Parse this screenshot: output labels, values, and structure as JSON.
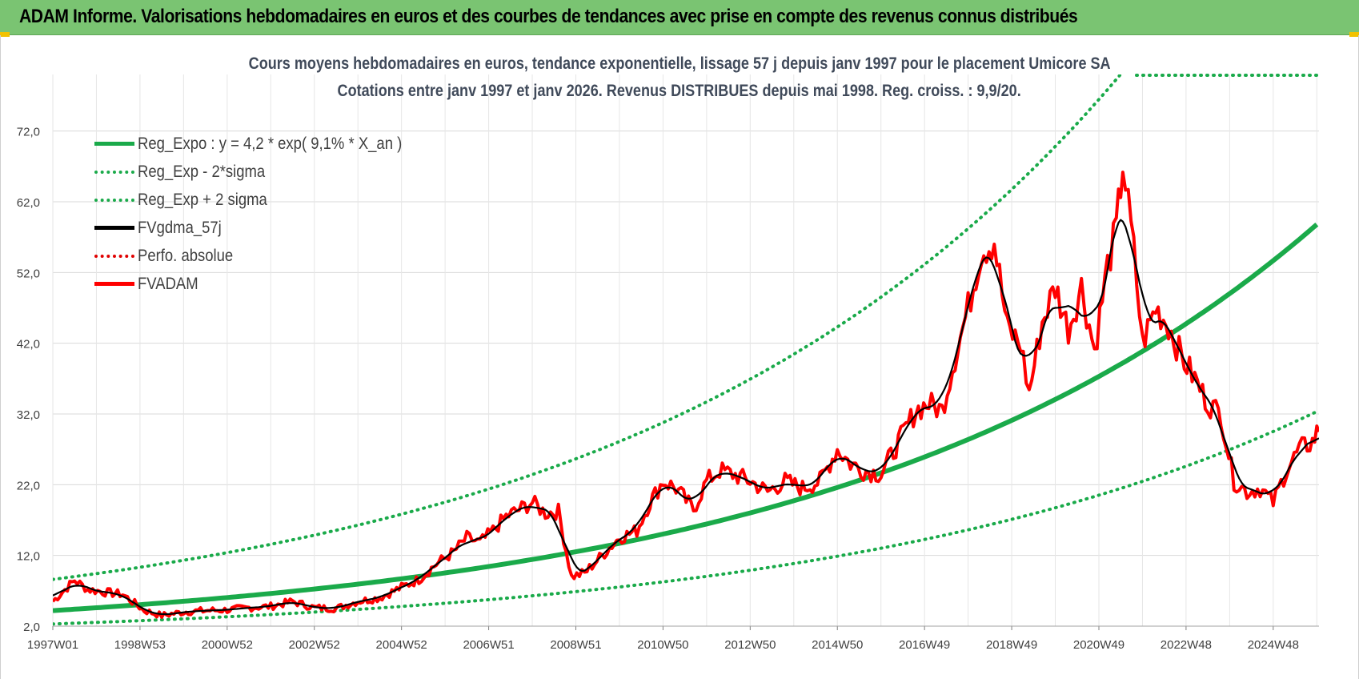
{
  "header": {
    "title": "ADAM Informe. Valorisations hebdomadaires en euros et des courbes de tendances avec prise en compte des revenus connus distribués"
  },
  "colors": {
    "header_bg": "#7ac472",
    "reg_expo": "#1aaa4a",
    "reg_sigma": "#1aaa4a",
    "fvgdma": "#000000",
    "perfo": "#e00000",
    "fvadam": "#ff0000",
    "grid": "#d9d9d9"
  },
  "chart_data": {
    "type": "line",
    "title_line1": "Cours moyens hebdomadaires en euros, tendance exponentielle, lissage 57 j depuis janv 1997  pour le placement Umicore SA",
    "title_line2": "Cotations entre janv 1997 et janv 2026. Revenus DISTRIBUES depuis mai 1998.  Reg. croiss. : 9,9/20.",
    "ylim": [
      2.0,
      80.0
    ],
    "xlim": [
      1997.0,
      2026.05
    ],
    "y_ticks": [
      "2,0",
      "12,0",
      "22,0",
      "32,0",
      "42,0",
      "52,0",
      "62,0",
      "72,0"
    ],
    "y_tick_values": [
      2,
      12,
      22,
      32,
      42,
      52,
      62,
      72
    ],
    "x_ticks": [
      "1997W01",
      "1998W53",
      "2000W52",
      "2002W52",
      "2004W52",
      "2006W51",
      "2008W51",
      "2010W50",
      "2012W50",
      "2014W50",
      "2016W49",
      "2018W49",
      "2020W49",
      "2022W48",
      "2024W48"
    ],
    "x_tick_values": [
      1997.0,
      1999.0,
      2001.0,
      2003.0,
      2005.0,
      2007.0,
      2009.0,
      2011.0,
      2013.0,
      2015.0,
      2017.0,
      2019.0,
      2021.0,
      2023.0,
      2025.0
    ],
    "grid": true,
    "legend_position": "top-left",
    "regression": {
      "a": 4.2,
      "rate": 0.091,
      "sigma_low_factor": 0.55,
      "sigma_high_factor": 2.05
    },
    "series": [
      {
        "name": "Reg_Expo : y = 4,2 * exp( 9,1% *  X_an )",
        "style": "solid-green"
      },
      {
        "name": "Reg_Exp - 2*sigma",
        "style": "dotted-green"
      },
      {
        "name": "Reg_Exp + 2 sigma",
        "style": "dotted-green"
      },
      {
        "name": "FVgdma_57j",
        "style": "solid-black"
      },
      {
        "name": "Perfo. absolue",
        "style": "dotted-red"
      },
      {
        "name": "FVADAM",
        "style": "solid-red",
        "x": [
          1997.0,
          1997.5,
          1997.8,
          1998.2,
          1998.6,
          1999.1,
          1999.5,
          2000.0,
          2000.5,
          2001.0,
          2001.5,
          2002.0,
          2002.5,
          2003.0,
          2003.5,
          2004.0,
          2004.5,
          2005.0,
          2005.4,
          2005.8,
          2006.2,
          2006.5,
          2006.8,
          2007.1,
          2007.4,
          2007.7,
          2008.0,
          2008.3,
          2008.6,
          2008.9,
          2009.2,
          2009.6,
          2010.0,
          2010.4,
          2010.7,
          2011.0,
          2011.3,
          2011.7,
          2012.0,
          2012.3,
          2012.6,
          2013.0,
          2013.4,
          2013.8,
          2014.2,
          2014.6,
          2015.0,
          2015.3,
          2015.6,
          2016.0,
          2016.4,
          2016.8,
          2017.1,
          2017.4,
          2017.7,
          2018.0,
          2018.3,
          2018.6,
          2018.9,
          2019.2,
          2019.4,
          2019.7,
          2020.0,
          2020.3,
          2020.6,
          2020.9,
          2021.2,
          2021.4,
          2021.55,
          2021.8,
          2022.0,
          2022.3,
          2022.6,
          2022.9,
          2023.2,
          2023.5,
          2023.8,
          2024.1,
          2024.4,
          2024.7,
          2025.0,
          2025.3,
          2025.6,
          2025.9,
          2026.05
        ],
        "values": [
          5.5,
          8.5,
          7.2,
          6.8,
          6.5,
          4.2,
          3.5,
          4.0,
          4.2,
          4.3,
          4.6,
          4.8,
          5.5,
          4.6,
          4.5,
          5.5,
          6.0,
          7.5,
          8.6,
          10.8,
          12.5,
          14.5,
          13.8,
          15.5,
          17.5,
          18.5,
          19.5,
          18.0,
          18.2,
          9.0,
          9.5,
          12.0,
          14.5,
          15.5,
          19.5,
          22.5,
          21.5,
          18.5,
          22.5,
          24.0,
          23.5,
          22.5,
          21.0,
          22.5,
          21.5,
          22.5,
          27.0,
          25.0,
          24.0,
          23.5,
          28.0,
          32.5,
          33.5,
          32.5,
          40.0,
          47.0,
          55.0,
          56.5,
          44.0,
          42.0,
          35.0,
          45.0,
          50.0,
          44.0,
          50.0,
          41.0,
          53.0,
          58.0,
          67.5,
          55.0,
          42.0,
          47.0,
          44.5,
          40.0,
          37.0,
          33.5,
          32.0,
          22.5,
          21.0,
          21.5,
          19.5,
          24.0,
          27.0,
          28.0,
          30.0
        ]
      }
    ]
  },
  "legend": [
    {
      "label": "Reg_Expo : y = 4,2 * exp( 9,1% *  X_an )",
      "color": "#1aaa4a",
      "style": "solid"
    },
    {
      "label": "Reg_Exp - 2*sigma",
      "color": "#1aaa4a",
      "style": "dotted"
    },
    {
      "label": "Reg_Exp + 2 sigma",
      "color": "#1aaa4a",
      "style": "dotted"
    },
    {
      "label": "FVgdma_57j",
      "color": "#000000",
      "style": "solid"
    },
    {
      "label": "Perfo. absolue",
      "color": "#e00000",
      "style": "dotted"
    },
    {
      "label": "FVADAM",
      "color": "#ff0000",
      "style": "solid"
    }
  ]
}
